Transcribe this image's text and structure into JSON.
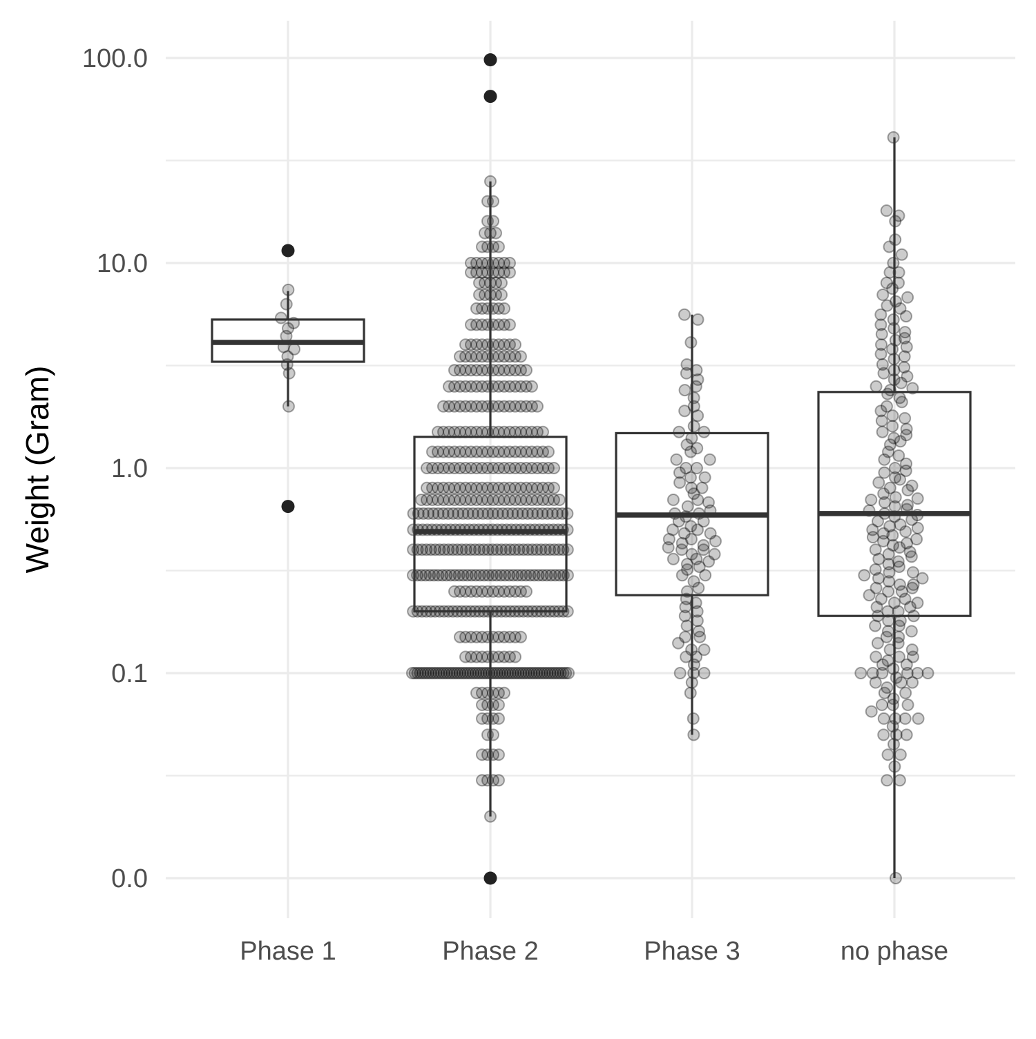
{
  "chart_data": {
    "type": "boxplot",
    "ylabel": "Weight (Gram)",
    "xlabel": "",
    "y_scale": "log-like (tick labels 0.0, 0.1, 1.0, 10.0, 100.0)",
    "y_ticks": [
      {
        "value": 0.01,
        "label": "0.0"
      },
      {
        "value": 0.1,
        "label": "0.1"
      },
      {
        "value": 1,
        "label": "1.0"
      },
      {
        "value": 10,
        "label": "10.0"
      },
      {
        "value": 100,
        "label": "100.0"
      }
    ],
    "y_minor_ticks": [
      0.03162,
      0.3162,
      3.162,
      31.62
    ],
    "ylim": [
      0.006,
      170
    ],
    "grid": true,
    "categories": [
      "Phase 1",
      "Phase 2",
      "Phase 3",
      "no phase"
    ],
    "boxes": [
      {
        "category": "Phase 1",
        "whisker_low": 2.0,
        "q1": 3.3,
        "median": 4.1,
        "q3": 5.3,
        "whisker_high": 7.3,
        "outliers": [
          0.65,
          11.5
        ]
      },
      {
        "category": "Phase 2",
        "whisker_low": 0.02,
        "q1": 0.2,
        "median": 0.49,
        "q3": 1.42,
        "whisker_high": 25,
        "outliers": [
          0.01,
          65,
          98
        ]
      },
      {
        "category": "Phase 3",
        "whisker_low": 0.05,
        "q1": 0.24,
        "median": 0.59,
        "q3": 1.48,
        "whisker_high": 5.6,
        "outliers": []
      },
      {
        "category": "no phase",
        "whisker_low": 0.01,
        "q1": 0.19,
        "median": 0.6,
        "q3": 2.35,
        "whisker_high": 41,
        "outliers": []
      }
    ],
    "points": {
      "Phase 1": [
        11.5,
        7.4,
        6.3,
        5.4,
        5.1,
        4.8,
        4.4,
        3.9,
        3.8,
        3.5,
        3.2,
        2.9,
        2.0
      ],
      "Phase 2": {
        "levels": [
          {
            "value": 0.1,
            "n": 60
          },
          {
            "value": 0.2,
            "n": 36
          },
          {
            "value": 0.3,
            "n": 38
          },
          {
            "value": 0.4,
            "n": 36
          },
          {
            "value": 0.5,
            "n": 34
          },
          {
            "value": 0.6,
            "n": 32
          },
          {
            "value": 0.7,
            "n": 26
          },
          {
            "value": 0.8,
            "n": 24
          },
          {
            "value": 1.0,
            "n": 24
          },
          {
            "value": 1.2,
            "n": 22
          },
          {
            "value": 1.5,
            "n": 20
          },
          {
            "value": 2.0,
            "n": 18
          },
          {
            "value": 2.5,
            "n": 16
          },
          {
            "value": 3.0,
            "n": 14
          },
          {
            "value": 3.5,
            "n": 12
          },
          {
            "value": 4.0,
            "n": 10
          },
          {
            "value": 5.0,
            "n": 8
          },
          {
            "value": 6.0,
            "n": 6
          },
          {
            "value": 7.0,
            "n": 5
          },
          {
            "value": 8.0,
            "n": 5
          },
          {
            "value": 9.0,
            "n": 8
          },
          {
            "value": 10.0,
            "n": 8
          },
          {
            "value": 12.0,
            "n": 4
          },
          {
            "value": 14.0,
            "n": 3
          },
          {
            "value": 16.0,
            "n": 2
          },
          {
            "value": 20.0,
            "n": 2
          },
          {
            "value": 25.0,
            "n": 1
          },
          {
            "value": 0.25,
            "n": 14
          },
          {
            "value": 0.15,
            "n": 12
          },
          {
            "value": 0.12,
            "n": 10
          },
          {
            "value": 0.08,
            "n": 6
          },
          {
            "value": 0.07,
            "n": 4
          },
          {
            "value": 0.06,
            "n": 4
          },
          {
            "value": 0.05,
            "n": 2
          },
          {
            "value": 0.04,
            "n": 4
          },
          {
            "value": 0.03,
            "n": 4
          },
          {
            "value": 0.02,
            "n": 1
          }
        ]
      },
      "Phase 3": [
        5.6,
        5.3,
        4.1,
        3.2,
        2.9,
        2.7,
        2.4,
        2.2,
        1.9,
        1.6,
        1.5,
        1.4,
        1.3,
        1.2,
        1.1,
        1.0,
        0.95,
        0.9,
        0.85,
        0.8,
        0.75,
        0.7,
        0.65,
        0.6,
        0.58,
        0.55,
        0.52,
        0.5,
        0.48,
        0.45,
        0.43,
        0.41,
        0.4,
        0.38,
        0.36,
        0.34,
        0.32,
        0.3,
        0.28,
        0.25,
        0.23,
        0.21,
        0.19,
        0.17,
        0.15,
        0.14,
        0.13,
        0.12,
        0.11,
        0.1,
        0.1,
        0.09,
        0.08,
        0.06,
        0.05,
        1.8,
        2.0,
        1.0,
        0.6,
        0.7,
        0.45,
        0.36,
        0.15,
        0.12,
        0.1,
        1.5,
        0.9,
        0.5,
        0.4,
        0.3,
        0.22,
        0.16,
        0.13,
        3.0,
        2.5,
        1.25,
        0.8,
        0.55,
        0.42,
        0.62,
        0.48,
        0.38,
        0.26,
        0.18,
        0.2,
        1.1,
        0.68,
        0.44,
        0.35,
        0.33
      ],
      "no phase": [
        41,
        18,
        17,
        16,
        13,
        12,
        11,
        10,
        9,
        9,
        8,
        8,
        7.5,
        7,
        6.5,
        6.2,
        6,
        5.6,
        5.3,
        5,
        4.8,
        4.5,
        4.2,
        4,
        3.8,
        3.6,
        3.4,
        3.2,
        3.0,
        2.9,
        2.7,
        2.5,
        2.4,
        2.3,
        2.2,
        2.0,
        1.9,
        1.8,
        1.7,
        1.6,
        1.5,
        1.4,
        1.3,
        1.2,
        1.1,
        1.0,
        0.95,
        0.9,
        0.85,
        0.8,
        0.75,
        0.72,
        0.7,
        0.68,
        0.65,
        0.62,
        0.6,
        0.58,
        0.55,
        0.52,
        0.5,
        0.48,
        0.46,
        0.44,
        0.42,
        0.4,
        0.38,
        0.36,
        0.34,
        0.32,
        0.3,
        0.29,
        0.28,
        0.27,
        0.26,
        0.25,
        0.24,
        0.23,
        0.22,
        0.21,
        0.2,
        0.19,
        0.18,
        0.17,
        0.16,
        0.15,
        0.14,
        0.13,
        0.12,
        0.115,
        0.11,
        0.105,
        0.1,
        0.1,
        0.1,
        0.095,
        0.09,
        0.085,
        0.08,
        0.075,
        0.07,
        0.065,
        0.06,
        0.06,
        0.055,
        0.05,
        0.05,
        0.045,
        0.04,
        0.04,
        0.035,
        0.03,
        0.03,
        0.01,
        5.5,
        4.6,
        3.5,
        2.8,
        2.1,
        1.55,
        1.15,
        0.88,
        0.66,
        0.53,
        0.47,
        0.41,
        0.35,
        0.31,
        0.27,
        0.23,
        0.2,
        0.17,
        0.14,
        0.12,
        0.1,
        0.09,
        0.07,
        0.06,
        6.8,
        4.3,
        3.1,
        2.6,
        1.75,
        1.35,
        0.97,
        0.78,
        0.63,
        0.56,
        0.49,
        0.43,
        0.37,
        0.33,
        0.29,
        0.25,
        0.21,
        0.18,
        0.15,
        0.13,
        0.11,
        0.1,
        0.08,
        0.06,
        3.9,
        2.45,
        1.45,
        1.05,
        0.82,
        0.71,
        0.59,
        0.51,
        0.45,
        0.39,
        0.31,
        0.26,
        0.22,
        0.19,
        0.16,
        0.12,
        0.1,
        0.09,
        0.07,
        0.05
      ]
    },
    "colors": {
      "grid": "#ebebeb",
      "box_stroke": "#333333",
      "point_fill": "rgba(0,0,0,0.2)",
      "point_stroke": "rgba(0,0,0,0.35)",
      "outlier": "#222222",
      "tick_label": "#4d4d4d",
      "axis_title": "#000000"
    }
  }
}
